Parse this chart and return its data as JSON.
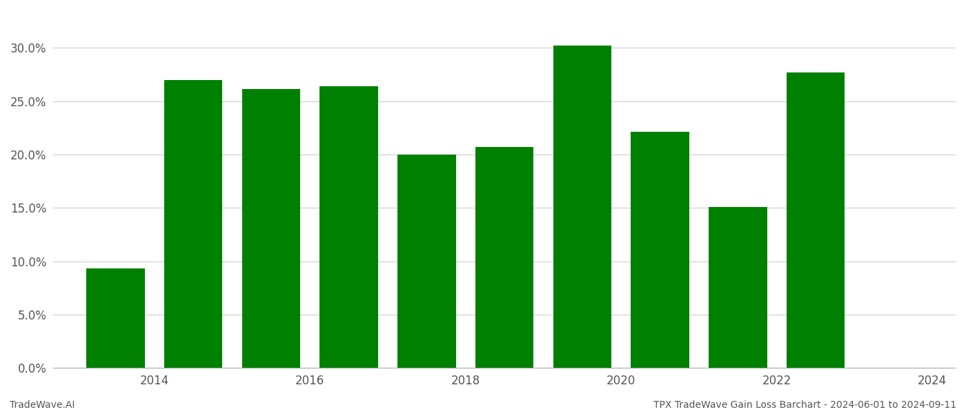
{
  "years": [
    2014,
    2015,
    2016,
    2017,
    2018,
    2019,
    2020,
    2021,
    2022,
    2023
  ],
  "values": [
    0.093,
    0.27,
    0.261,
    0.264,
    0.2,
    0.207,
    0.302,
    0.221,
    0.151,
    0.277
  ],
  "bar_color": "#008000",
  "ylim": [
    0,
    0.335
  ],
  "yticks": [
    0.0,
    0.05,
    0.1,
    0.15,
    0.2,
    0.25,
    0.3
  ],
  "xlim_left": 2013.2,
  "xlim_right": 2024.8,
  "xtick_positions": [
    2014,
    2016,
    2018,
    2020,
    2022,
    2024
  ],
  "xtick_labels": [
    "2014",
    "2016",
    "2018",
    "2020",
    "2022",
    "2024"
  ],
  "background_color": "#ffffff",
  "grid_color": "#cccccc",
  "footer_left": "TradeWave.AI",
  "footer_right": "TPX TradeWave Gain Loss Barchart - 2024-06-01 to 2024-09-11",
  "tick_fontsize": 12,
  "footer_fontsize": 10,
  "bar_width": 0.75
}
